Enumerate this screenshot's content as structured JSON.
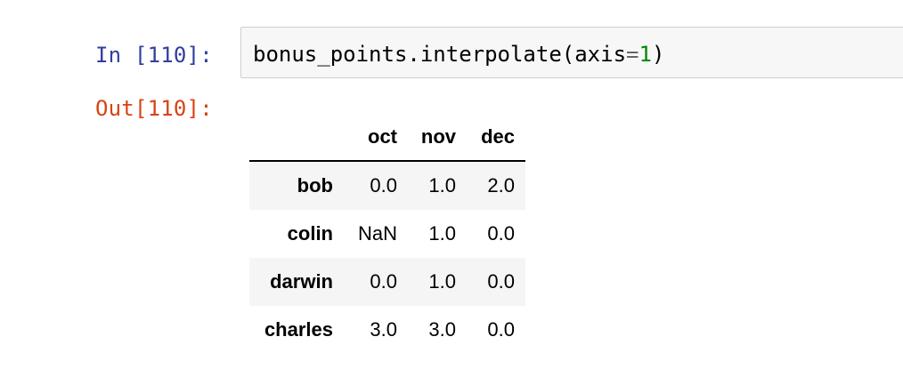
{
  "input_cell": {
    "prompt": "In [110]:",
    "code": {
      "before": "bonus_points.interpolate(axis",
      "op": "=",
      "number": "1",
      "after": ")"
    }
  },
  "output_cell": {
    "prompt": "Out[110]:",
    "table": {
      "index_header": "",
      "columns": [
        "oct",
        "nov",
        "dec"
      ],
      "rows": [
        {
          "index": "bob",
          "values": [
            "0.0",
            "1.0",
            "2.0"
          ]
        },
        {
          "index": "colin",
          "values": [
            "NaN",
            "1.0",
            "0.0"
          ]
        },
        {
          "index": "darwin",
          "values": [
            "0.0",
            "1.0",
            "0.0"
          ]
        },
        {
          "index": "charles",
          "values": [
            "3.0",
            "3.0",
            "0.0"
          ]
        }
      ]
    }
  },
  "colors": {
    "in_prompt": "#303f9f",
    "out_prompt": "#d84315",
    "input_bg": "#f7f7f7",
    "input_border": "#cfcfcf",
    "stripe": "#f5f5f5"
  }
}
